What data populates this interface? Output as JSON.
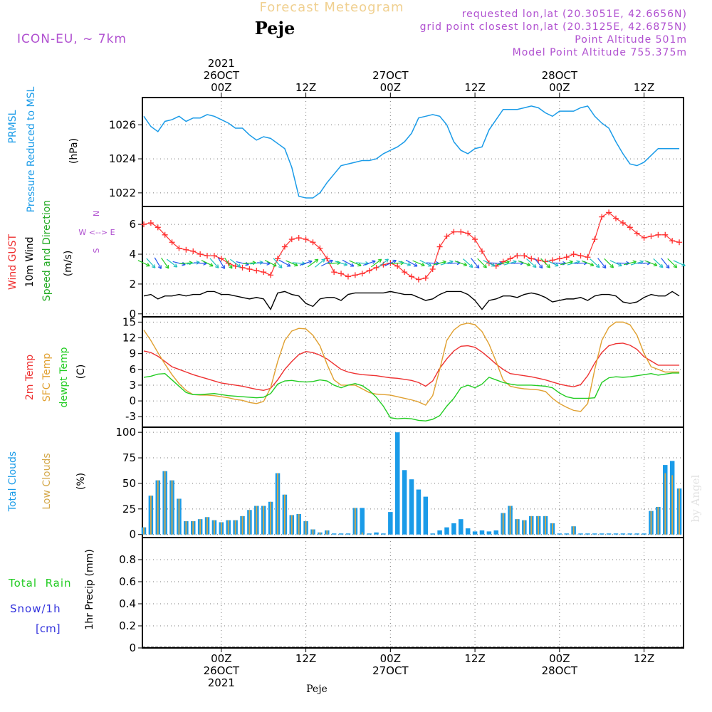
{
  "header": {
    "title": "Forecast Meteogram",
    "location": "Peje",
    "model": "ICON-EU, ~ 7km",
    "requested": "requested lon,lat (20.3051E, 42.6656N)",
    "grid_point": "grid point closest lon,lat (20.3125E, 42.6875N)",
    "point_altitude": "Point Altitude 501m",
    "model_altitude": "Model Point Altitude 755.375m",
    "footer_location": "Peje",
    "watermark": "by Angel"
  },
  "colors": {
    "pressure": "#1a9be8",
    "gust": "#ff3030",
    "wind": "#000000",
    "temp2m": "#ee3030",
    "sfc": "#e0a030",
    "dewpt": "#22cc22",
    "total_clouds": "#1a9be8",
    "low_clouds": "#d4a84a",
    "rain": "#22cc22",
    "snow": "#3333dd",
    "label_purple": "#b050d0"
  },
  "time_axis": {
    "top_ticks": [
      {
        "lines": [
          "2021",
          "26OCT",
          "00Z"
        ],
        "t": 0
      },
      {
        "lines": [
          "12Z"
        ],
        "t": 12
      },
      {
        "lines": [
          "27OCT",
          "00Z"
        ],
        "t": 24
      },
      {
        "lines": [
          "12Z"
        ],
        "t": 36
      },
      {
        "lines": [
          "28OCT",
          "00Z"
        ],
        "t": 48
      },
      {
        "lines": [
          "12Z"
        ],
        "t": 60
      }
    ],
    "bottom_ticks": [
      {
        "lines": [
          "00Z",
          "26OCT",
          "2021"
        ],
        "t": 0
      },
      {
        "lines": [
          "12Z"
        ],
        "t": 12
      },
      {
        "lines": [
          "00Z",
          "27OCT"
        ],
        "t": 24
      },
      {
        "lines": [
          "12Z"
        ],
        "t": 36
      },
      {
        "lines": [
          "00Z",
          "28OCT"
        ],
        "t": 48
      },
      {
        "lines": [
          "12Z"
        ],
        "t": 60
      }
    ],
    "t_start": -11.2,
    "t_end": 65.6
  },
  "labels": {
    "pressure": [
      "PRMSL",
      "Pressure Reduced to MSL"
    ],
    "pressure_unit": "(hPa)",
    "gust": "Wind GUST",
    "wind": "10m Wind",
    "wind_dir": "Speed and Direction",
    "wind_unit": "(m/s)",
    "compass": [
      "N",
      "W <--> E",
      "S"
    ],
    "temp2m": "2m Temp",
    "sfc": "SFC Temp",
    "dewpt": "dewpt Temp",
    "temp_unit": "(C)",
    "total_clouds": "Total Clouds",
    "low_clouds": "Low Clouds",
    "cloud_unit": "(%)",
    "rain": "Total  Rain",
    "snow": "Snow/1h",
    "snow_unit": "[cm]",
    "precip": "1hr Precip (mm)"
  },
  "chart_data": [
    {
      "type": "line",
      "title": "PRMSL Pressure Reduced to MSL",
      "ylabel": "(hPa)",
      "ylim": [
        1021.2,
        1027.6
      ],
      "yticks": [
        1022,
        1024,
        1026
      ],
      "x": [
        -11,
        -10,
        -9,
        -8,
        -7,
        -6,
        -5,
        -4,
        -3,
        -2,
        -1,
        0,
        1,
        2,
        3,
        4,
        5,
        6,
        7,
        8,
        9,
        10,
        11,
        12,
        13,
        14,
        15,
        16,
        17,
        18,
        19,
        20,
        21,
        22,
        23,
        24,
        25,
        26,
        27,
        28,
        29,
        30,
        31,
        32,
        33,
        34,
        35,
        36,
        37,
        38,
        39,
        40,
        41,
        42,
        43,
        44,
        45,
        46,
        47,
        48,
        49,
        50,
        51,
        52,
        53,
        54,
        55,
        56,
        57,
        58,
        59,
        60,
        61,
        62,
        63,
        64,
        65
      ],
      "y": [
        1026.5,
        1025.9,
        1025.6,
        1026.2,
        1026.3,
        1026.5,
        1026.2,
        1026.4,
        1026.4,
        1026.6,
        1026.5,
        1026.3,
        1026.1,
        1025.8,
        1025.8,
        1025.4,
        1025.1,
        1025.3,
        1025.2,
        1024.9,
        1024.6,
        1023.5,
        1021.8,
        1021.7,
        1021.7,
        1022.0,
        1022.6,
        1023.1,
        1023.6,
        1023.7,
        1023.8,
        1023.9,
        1023.9,
        1024.0,
        1024.3,
        1024.5,
        1024.7,
        1025.0,
        1025.5,
        1026.4,
        1026.5,
        1026.6,
        1026.5,
        1026.0,
        1025.0,
        1024.5,
        1024.3,
        1024.6,
        1024.7,
        1025.7,
        1026.3,
        1026.9,
        1026.9,
        1026.9,
        1027.0,
        1027.1,
        1027.0,
        1026.7,
        1026.5,
        1026.8,
        1026.8,
        1026.8,
        1027.0,
        1027.1,
        1026.5,
        1026.1,
        1025.8,
        1025.0,
        1024.3,
        1023.7,
        1023.6,
        1023.8,
        1024.2,
        1024.6,
        1024.6,
        1024.6,
        1024.6
      ]
    },
    {
      "type": "line",
      "title": "Wind GUST / 10m Wind Speed and Direction",
      "ylabel": "(m/s)",
      "ylim": [
        -0.2,
        7.2
      ],
      "yticks": [
        0,
        2,
        4,
        6
      ],
      "x": [
        -11,
        -10,
        -9,
        -8,
        -7,
        -6,
        -5,
        -4,
        -3,
        -2,
        -1,
        0,
        1,
        2,
        3,
        4,
        5,
        6,
        7,
        8,
        9,
        10,
        11,
        12,
        13,
        14,
        15,
        16,
        17,
        18,
        19,
        20,
        21,
        22,
        23,
        24,
        25,
        26,
        27,
        28,
        29,
        30,
        31,
        32,
        33,
        34,
        35,
        36,
        37,
        38,
        39,
        40,
        41,
        42,
        43,
        44,
        45,
        46,
        47,
        48,
        49,
        50,
        51,
        52,
        53,
        54,
        55,
        56,
        57,
        58,
        59,
        60,
        61,
        62,
        63,
        64,
        65
      ],
      "series": [
        {
          "name": "Wind GUST",
          "values": [
            6.0,
            6.1,
            5.8,
            5.3,
            4.8,
            4.4,
            4.3,
            4.2,
            4.0,
            3.9,
            3.9,
            3.7,
            3.4,
            3.2,
            3.1,
            3.0,
            2.9,
            2.8,
            2.6,
            3.7,
            4.5,
            5.0,
            5.1,
            5.0,
            4.8,
            4.4,
            3.7,
            2.8,
            2.7,
            2.5,
            2.6,
            2.7,
            2.9,
            3.1,
            3.3,
            3.4,
            3.2,
            2.8,
            2.5,
            2.3,
            2.4,
            3.0,
            4.5,
            5.2,
            5.5,
            5.5,
            5.4,
            5.0,
            4.2,
            3.4,
            3.2,
            3.5,
            3.7,
            3.9,
            3.9,
            3.7,
            3.6,
            3.5,
            3.6,
            3.7,
            3.8,
            4.0,
            3.9,
            3.8,
            5.0,
            6.5,
            6.8,
            6.4,
            6.1,
            5.8,
            5.4,
            5.1,
            5.2,
            5.3,
            5.3,
            4.9,
            4.8
          ]
        },
        {
          "name": "10m Wind",
          "values": [
            1.2,
            1.3,
            1.0,
            1.2,
            1.2,
            1.3,
            1.2,
            1.3,
            1.3,
            1.5,
            1.5,
            1.3,
            1.3,
            1.2,
            1.1,
            1.0,
            1.1,
            1.0,
            0.3,
            1.4,
            1.5,
            1.3,
            1.2,
            0.7,
            0.5,
            1.0,
            1.1,
            1.1,
            0.9,
            1.3,
            1.4,
            1.4,
            1.4,
            1.4,
            1.4,
            1.5,
            1.4,
            1.3,
            1.3,
            1.1,
            0.9,
            1.0,
            1.3,
            1.5,
            1.5,
            1.5,
            1.3,
            0.9,
            0.3,
            0.9,
            1.0,
            1.2,
            1.2,
            1.1,
            1.3,
            1.4,
            1.3,
            1.1,
            0.8,
            0.9,
            1.0,
            1.0,
            1.1,
            0.9,
            1.2,
            1.3,
            1.3,
            1.2,
            0.8,
            0.7,
            0.8,
            1.1,
            1.3,
            1.2,
            1.2,
            1.5,
            1.2
          ]
        }
      ],
      "wind_arrows": {
        "color_cycle": [
          "#22cc22",
          "#20c0c0",
          "#2255ee"
        ]
      }
    },
    {
      "type": "line",
      "title": "2m Temp / SFC Temp / dewpt Temp",
      "ylabel": "(C)",
      "ylim": [
        -5,
        16
      ],
      "yticks": [
        -3,
        0,
        3,
        6,
        9,
        12,
        15
      ],
      "x": [
        -11,
        -10,
        -9,
        -8,
        -7,
        -6,
        -5,
        -4,
        -3,
        -2,
        -1,
        0,
        1,
        2,
        3,
        4,
        5,
        6,
        7,
        8,
        9,
        10,
        11,
        12,
        13,
        14,
        15,
        16,
        17,
        18,
        19,
        20,
        21,
        22,
        23,
        24,
        25,
        26,
        27,
        28,
        29,
        30,
        31,
        32,
        33,
        34,
        35,
        36,
        37,
        38,
        39,
        40,
        41,
        42,
        43,
        44,
        45,
        46,
        47,
        48,
        49,
        50,
        51,
        52,
        53,
        54,
        55,
        56,
        57,
        58,
        59,
        60,
        61,
        62,
        63,
        64,
        65
      ],
      "series": [
        {
          "name": "2m Temp",
          "values": [
            9.5,
            9.2,
            8.5,
            7.5,
            6.5,
            6.0,
            5.5,
            5.0,
            4.6,
            4.2,
            3.8,
            3.4,
            3.2,
            3.0,
            2.8,
            2.5,
            2.2,
            2.0,
            2.4,
            4.0,
            6.0,
            7.5,
            8.8,
            9.4,
            9.2,
            8.7,
            8.0,
            7.0,
            6.0,
            5.5,
            5.2,
            5.0,
            4.9,
            4.8,
            4.6,
            4.4,
            4.3,
            4.1,
            3.9,
            3.5,
            2.8,
            3.8,
            6.2,
            8.0,
            9.5,
            10.4,
            10.5,
            10.2,
            9.3,
            8.2,
            7.0,
            6.0,
            5.2,
            5.0,
            4.8,
            4.6,
            4.3,
            4.0,
            3.6,
            3.2,
            2.9,
            2.7,
            3.1,
            4.8,
            7.2,
            9.2,
            10.5,
            10.9,
            11.0,
            10.6,
            9.8,
            8.4,
            7.6,
            6.8,
            6.8,
            6.8,
            6.8
          ]
        },
        {
          "name": "SFC Temp",
          "values": [
            13.5,
            11.5,
            9.2,
            7.0,
            5.0,
            3.3,
            2.0,
            1.2,
            1.1,
            1.1,
            1.0,
            0.8,
            0.6,
            0.3,
            0.1,
            -0.3,
            -0.5,
            -0.1,
            2.5,
            7.5,
            11.5,
            13.3,
            13.8,
            13.7,
            12.5,
            10.5,
            7.0,
            4.0,
            3.0,
            3.0,
            3.0,
            2.3,
            1.6,
            1.3,
            1.2,
            1.1,
            0.8,
            0.5,
            0.2,
            -0.2,
            -0.8,
            1.0,
            6.0,
            11.5,
            13.5,
            14.5,
            14.8,
            14.5,
            13.2,
            10.8,
            7.5,
            4.0,
            2.8,
            2.5,
            2.3,
            2.2,
            2.1,
            1.8,
            0.5,
            -0.5,
            -1.2,
            -1.8,
            -2.0,
            -0.5,
            6.0,
            11.5,
            14.0,
            15.0,
            15.0,
            14.5,
            12.5,
            9.0,
            6.5,
            6.0,
            5.5,
            5.5,
            5.5
          ]
        },
        {
          "name": "dewpt Temp",
          "values": [
            4.5,
            4.7,
            5.1,
            5.2,
            4.0,
            2.8,
            1.6,
            1.2,
            1.2,
            1.3,
            1.4,
            1.2,
            1.0,
            0.9,
            0.8,
            0.7,
            0.6,
            0.7,
            1.4,
            3.2,
            3.8,
            3.9,
            3.7,
            3.6,
            3.7,
            4.0,
            3.8,
            3.0,
            2.5,
            3.0,
            3.3,
            2.9,
            2.0,
            0.7,
            -1.0,
            -3.2,
            -3.4,
            -3.3,
            -3.4,
            -3.7,
            -3.8,
            -3.5,
            -2.8,
            -1.0,
            0.5,
            2.5,
            3.0,
            2.5,
            3.2,
            4.5,
            4.0,
            3.5,
            3.2,
            3.0,
            3.0,
            3.0,
            2.9,
            2.8,
            2.5,
            1.5,
            0.8,
            0.5,
            0.5,
            0.5,
            0.6,
            3.5,
            4.4,
            4.6,
            4.5,
            4.6,
            4.8,
            5.0,
            5.2,
            4.9,
            5.1,
            5.3,
            5.3
          ]
        }
      ]
    },
    {
      "type": "bar",
      "title": "Total Clouds / Low Clouds",
      "ylabel": "(%)",
      "ylim": [
        -3,
        105
      ],
      "yticks": [
        0,
        25,
        50,
        75,
        100
      ],
      "x": [
        -11,
        -10,
        -9,
        -8,
        -7,
        -6,
        -5,
        -4,
        -3,
        -2,
        -1,
        0,
        1,
        2,
        3,
        4,
        5,
        6,
        7,
        8,
        9,
        10,
        11,
        12,
        13,
        14,
        15,
        16,
        17,
        18,
        19,
        20,
        21,
        22,
        23,
        24,
        25,
        26,
        27,
        28,
        29,
        30,
        31,
        32,
        33,
        34,
        35,
        36,
        37,
        38,
        39,
        40,
        41,
        42,
        43,
        44,
        45,
        46,
        47,
        48,
        49,
        50,
        51,
        52,
        53,
        54,
        55,
        56,
        57,
        58,
        59,
        60,
        61,
        62,
        63,
        64,
        65
      ],
      "series": [
        {
          "name": "Total Clouds",
          "values": [
            7,
            38,
            53,
            62,
            53,
            35,
            13,
            13,
            15,
            17,
            14,
            12,
            14,
            14,
            18,
            24,
            28,
            28,
            32,
            60,
            39,
            19,
            20,
            13,
            5,
            2,
            4,
            1,
            1,
            1,
            26,
            26,
            1,
            2,
            1,
            22,
            100,
            63,
            54,
            44,
            37,
            1,
            4,
            7,
            11,
            15,
            6,
            3,
            4,
            3,
            4,
            21,
            28,
            15,
            14,
            18,
            18,
            18,
            11,
            1,
            1,
            8,
            1,
            1,
            1,
            1,
            1,
            1,
            1,
            1,
            1,
            1,
            23,
            27,
            68,
            72,
            45
          ]
        },
        {
          "name": "Low Clouds",
          "values": [
            7,
            38,
            53,
            62,
            53,
            35,
            13,
            13,
            15,
            17,
            14,
            12,
            14,
            14,
            18,
            24,
            28,
            28,
            32,
            60,
            39,
            19,
            20,
            13,
            5,
            2,
            4,
            1,
            1,
            1,
            26,
            2,
            1,
            1,
            1,
            1,
            1,
            1,
            1,
            1,
            1,
            1,
            1,
            1,
            1,
            1,
            1,
            1,
            1,
            1,
            1,
            21,
            28,
            15,
            14,
            18,
            18,
            18,
            11,
            1,
            1,
            8,
            1,
            1,
            1,
            1,
            1,
            1,
            1,
            1,
            1,
            1,
            23,
            27,
            60,
            58,
            45
          ]
        }
      ]
    },
    {
      "type": "line",
      "title": "Total Rain / Snow/1h",
      "ylabel": "1hr Precip (mm)",
      "ylim": [
        0,
        1.0
      ],
      "yticks": [
        0,
        0.2,
        0.4,
        0.6,
        0.8
      ],
      "x": [
        -11,
        65
      ],
      "series": [
        {
          "name": "Total Rain",
          "values": [
            0,
            0
          ]
        },
        {
          "name": "Snow/1h",
          "values": [
            0,
            0
          ]
        }
      ]
    }
  ]
}
